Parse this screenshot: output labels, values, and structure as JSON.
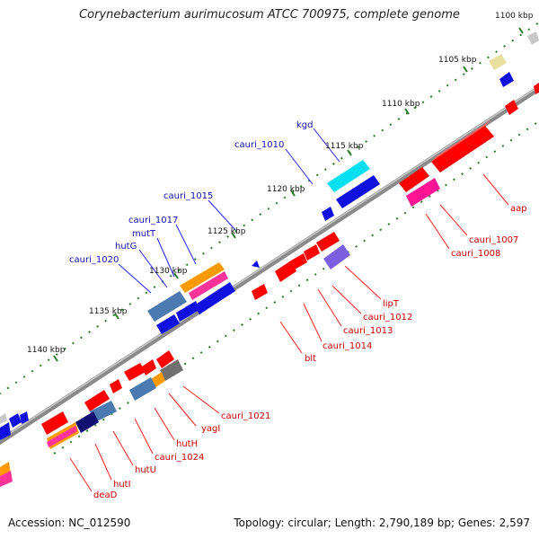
{
  "title": "Corynebacterium aurimucosum ATCC 700975, complete genome",
  "footer": {
    "accession": "Accession: NC_012590",
    "stats": "Topology: circular; Length: 2,790,189 bp; Genes: 2,597"
  },
  "colors": {
    "backbone": "#808080",
    "ticks": "#2a7a2a",
    "label_forward": "#1010b0",
    "label_reverse": "#cc0000",
    "leader_forward": "#2020ff",
    "leader_reverse": "#ff2020"
  },
  "kbp_labels": [
    "1100 kbp",
    "1105 kbp",
    "1110 kbp",
    "1115 kbp",
    "1120 kbp",
    "1125 kbp",
    "1130 kbp",
    "1135 kbp",
    "1140 kbp"
  ],
  "gene_labels": {
    "forward": [
      "kgd",
      "cauri_1010",
      "cauri_1015",
      "cauri_1017",
      "mutT",
      "hutG",
      "cauri_1020"
    ],
    "reverse": [
      "aap",
      "cauri_1007",
      "cauri_1008",
      "lipT",
      "cauri_1012",
      "cauri_1013",
      "cauri_1014",
      "blt",
      "cauri_1021",
      "yagI",
      "hutH",
      "cauri_1024",
      "hutU",
      "hutI",
      "deaD"
    ]
  }
}
